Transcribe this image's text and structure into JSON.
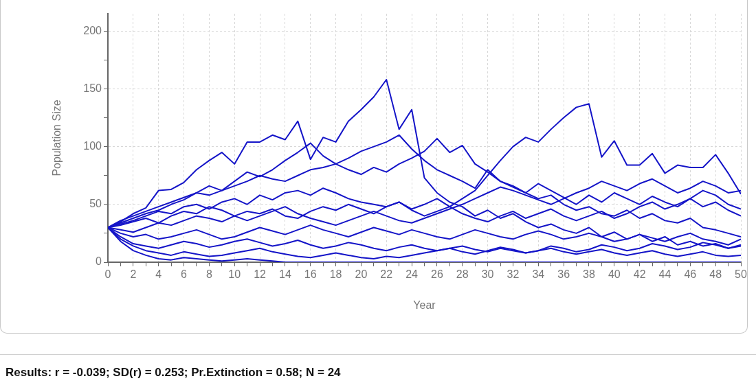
{
  "chart_data": {
    "type": "line",
    "xlabel": "Year",
    "ylabel": "Population Size",
    "annotations": [
      "Results: r = -0.039; SD(r) = 0.253; Pr.Extinction = 0.58; N = 24"
    ],
    "x": [
      0,
      1,
      2,
      3,
      4,
      5,
      6,
      7,
      8,
      9,
      10,
      11,
      12,
      13,
      14,
      15,
      16,
      17,
      18,
      19,
      20,
      21,
      22,
      23,
      24,
      25,
      26,
      27,
      28,
      29,
      30,
      31,
      32,
      33,
      34,
      35,
      36,
      37,
      38,
      39,
      40,
      41,
      42,
      43,
      44,
      45,
      46,
      47,
      48,
      49,
      50
    ],
    "xlim": [
      0,
      50
    ],
    "xticks": [
      0,
      {
        "value": 1,
        "label": null
      },
      2,
      {
        "value": 3,
        "label": null
      },
      4,
      {
        "value": 5,
        "label": null
      },
      6,
      {
        "value": 7,
        "label": null
      },
      8,
      {
        "value": 9,
        "label": null
      },
      10,
      {
        "value": 11,
        "label": null
      },
      12,
      {
        "value": 13,
        "label": null
      },
      14,
      {
        "value": 15,
        "label": null
      },
      16,
      {
        "value": 17,
        "label": null
      },
      18,
      {
        "value": 19,
        "label": null
      },
      20,
      {
        "value": 21,
        "label": null
      },
      22,
      {
        "value": 23,
        "label": null
      },
      24,
      {
        "value": 25,
        "label": null
      },
      26,
      {
        "value": 27,
        "label": null
      },
      28,
      {
        "value": 29,
        "label": null
      },
      30,
      {
        "value": 31,
        "label": null
      },
      32,
      {
        "value": 33,
        "label": null
      },
      34,
      {
        "value": 35,
        "label": null
      },
      36,
      {
        "value": 37,
        "label": null
      },
      38,
      {
        "value": 39,
        "label": null
      },
      40,
      {
        "value": 41,
        "label": null
      },
      42,
      {
        "value": 43,
        "label": null
      },
      44,
      {
        "value": 45,
        "label": null
      },
      46,
      {
        "value": 47,
        "label": null
      },
      48,
      {
        "value": 49,
        "label": null
      },
      50
    ],
    "ylim": [
      0,
      215
    ],
    "yticks": [
      0,
      {
        "value": 25,
        "label": null
      },
      50,
      {
        "value": 75,
        "label": null
      },
      100,
      {
        "value": 125,
        "label": null
      },
      150,
      {
        "value": 175,
        "label": null
      },
      200
    ],
    "grid": true,
    "legend": false,
    "marker": "none",
    "line_style": "solid",
    "series": [
      {
        "color": "#1414c8",
        "values": [
          30,
          35,
          42,
          47,
          62,
          63,
          69,
          80,
          88,
          95,
          85,
          104,
          104,
          110,
          106,
          122,
          89,
          108,
          104,
          122,
          132,
          143,
          158,
          115,
          132,
          73,
          60,
          52,
          48,
          40,
          45,
          38,
          42,
          35,
          30,
          33,
          28,
          25,
          30,
          22,
          26,
          20,
          24,
          18,
          22,
          15,
          18,
          14,
          16,
          12,
          15
        ]
      },
      {
        "color": "#1414c8",
        "values": [
          30,
          33,
          36,
          40,
          44,
          42,
          48,
          50,
          46,
          52,
          55,
          50,
          58,
          54,
          60,
          62,
          58,
          64,
          60,
          55,
          52,
          50,
          48,
          52,
          46,
          50,
          55,
          48,
          55,
          62,
          75,
          88,
          100,
          108,
          104,
          115,
          125,
          134,
          137,
          91,
          105,
          84,
          84,
          94,
          77,
          84,
          82,
          82,
          93,
          77,
          59
        ]
      },
      {
        "color": "#1414c8",
        "values": [
          30,
          34,
          38,
          42,
          45,
          50,
          54,
          60,
          58,
          62,
          66,
          70,
          75,
          72,
          70,
          75,
          80,
          82,
          85,
          90,
          96,
          100,
          104,
          110,
          98,
          88,
          80,
          75,
          70,
          64,
          80,
          70,
          66,
          60,
          55,
          58,
          50,
          45,
          48,
          42,
          40,
          45,
          38,
          42,
          36,
          34,
          38,
          30,
          28,
          25,
          22
        ]
      },
      {
        "color": "#1414c8",
        "values": [
          30,
          36,
          40,
          44,
          48,
          52,
          56,
          60,
          66,
          62,
          70,
          78,
          74,
          80,
          88,
          95,
          103,
          92,
          85,
          80,
          76,
          82,
          78,
          85,
          90,
          96,
          107,
          95,
          101,
          85,
          78,
          70,
          65,
          60,
          68,
          62,
          56,
          50,
          58,
          52,
          60,
          55,
          50,
          57,
          52,
          48,
          55,
          62,
          58,
          50,
          46
        ]
      },
      {
        "color": "#1414c8",
        "values": [
          30,
          28,
          26,
          30,
          34,
          32,
          36,
          40,
          38,
          35,
          40,
          44,
          42,
          46,
          40,
          38,
          44,
          48,
          45,
          50,
          46,
          42,
          48,
          52,
          45,
          40,
          44,
          48,
          42,
          38,
          35,
          40,
          44,
          38,
          42,
          46,
          40,
          36,
          40,
          44,
          38,
          42,
          48,
          52,
          46,
          50,
          55,
          48,
          52,
          45,
          40
        ]
      },
      {
        "color": "#1414c8",
        "values": [
          30,
          25,
          22,
          24,
          20,
          22,
          25,
          28,
          24,
          20,
          22,
          26,
          30,
          27,
          24,
          28,
          32,
          28,
          25,
          22,
          26,
          30,
          27,
          24,
          28,
          25,
          22,
          20,
          24,
          28,
          25,
          22,
          20,
          24,
          27,
          24,
          20,
          22,
          25,
          22,
          18,
          20,
          24,
          21,
          18,
          22,
          25,
          20,
          18,
          15,
          20
        ]
      },
      {
        "color": "#1414c8",
        "values": [
          30,
          22,
          16,
          14,
          12,
          15,
          18,
          16,
          13,
          15,
          18,
          20,
          17,
          14,
          16,
          19,
          15,
          12,
          14,
          17,
          15,
          12,
          10,
          13,
          15,
          12,
          10,
          12,
          14,
          11,
          9,
          12,
          10,
          8,
          10,
          12,
          9,
          7,
          9,
          11,
          8,
          6,
          8,
          10,
          7,
          5,
          7,
          9,
          6,
          5,
          6
        ]
      },
      {
        "color": "#1414c8",
        "values": [
          30,
          18,
          10,
          6,
          3,
          2,
          4,
          3,
          2,
          1,
          2,
          3,
          2,
          1,
          0,
          0,
          0,
          0,
          0,
          0,
          0,
          0,
          0,
          0,
          0,
          0,
          0,
          0,
          0,
          0,
          0,
          0,
          0,
          0,
          0,
          0,
          0,
          0,
          0,
          0,
          0,
          0,
          0,
          0,
          0,
          0,
          0,
          0,
          0,
          0,
          0
        ]
      },
      {
        "color": "#1414c8",
        "values": [
          30,
          20,
          14,
          10,
          8,
          6,
          9,
          7,
          5,
          6,
          8,
          10,
          12,
          9,
          7,
          5,
          4,
          6,
          8,
          6,
          4,
          3,
          5,
          4,
          6,
          8,
          10,
          12,
          9,
          7,
          10,
          13,
          11,
          8,
          10,
          14,
          12,
          9,
          11,
          15,
          13,
          10,
          12,
          16,
          14,
          11,
          13,
          17,
          15,
          12,
          14
        ]
      },
      {
        "color": "#1414c8",
        "values": [
          30,
          32,
          35,
          38,
          34,
          40,
          44,
          42,
          48,
          45,
          40,
          36,
          40,
          44,
          48,
          42,
          38,
          35,
          32,
          36,
          40,
          44,
          40,
          36,
          34,
          38,
          42,
          46,
          50,
          55,
          60,
          65,
          62,
          58,
          54,
          50,
          55,
          60,
          64,
          70,
          66,
          62,
          68,
          72,
          66,
          60,
          64,
          70,
          66,
          60,
          62
        ]
      }
    ]
  }
}
